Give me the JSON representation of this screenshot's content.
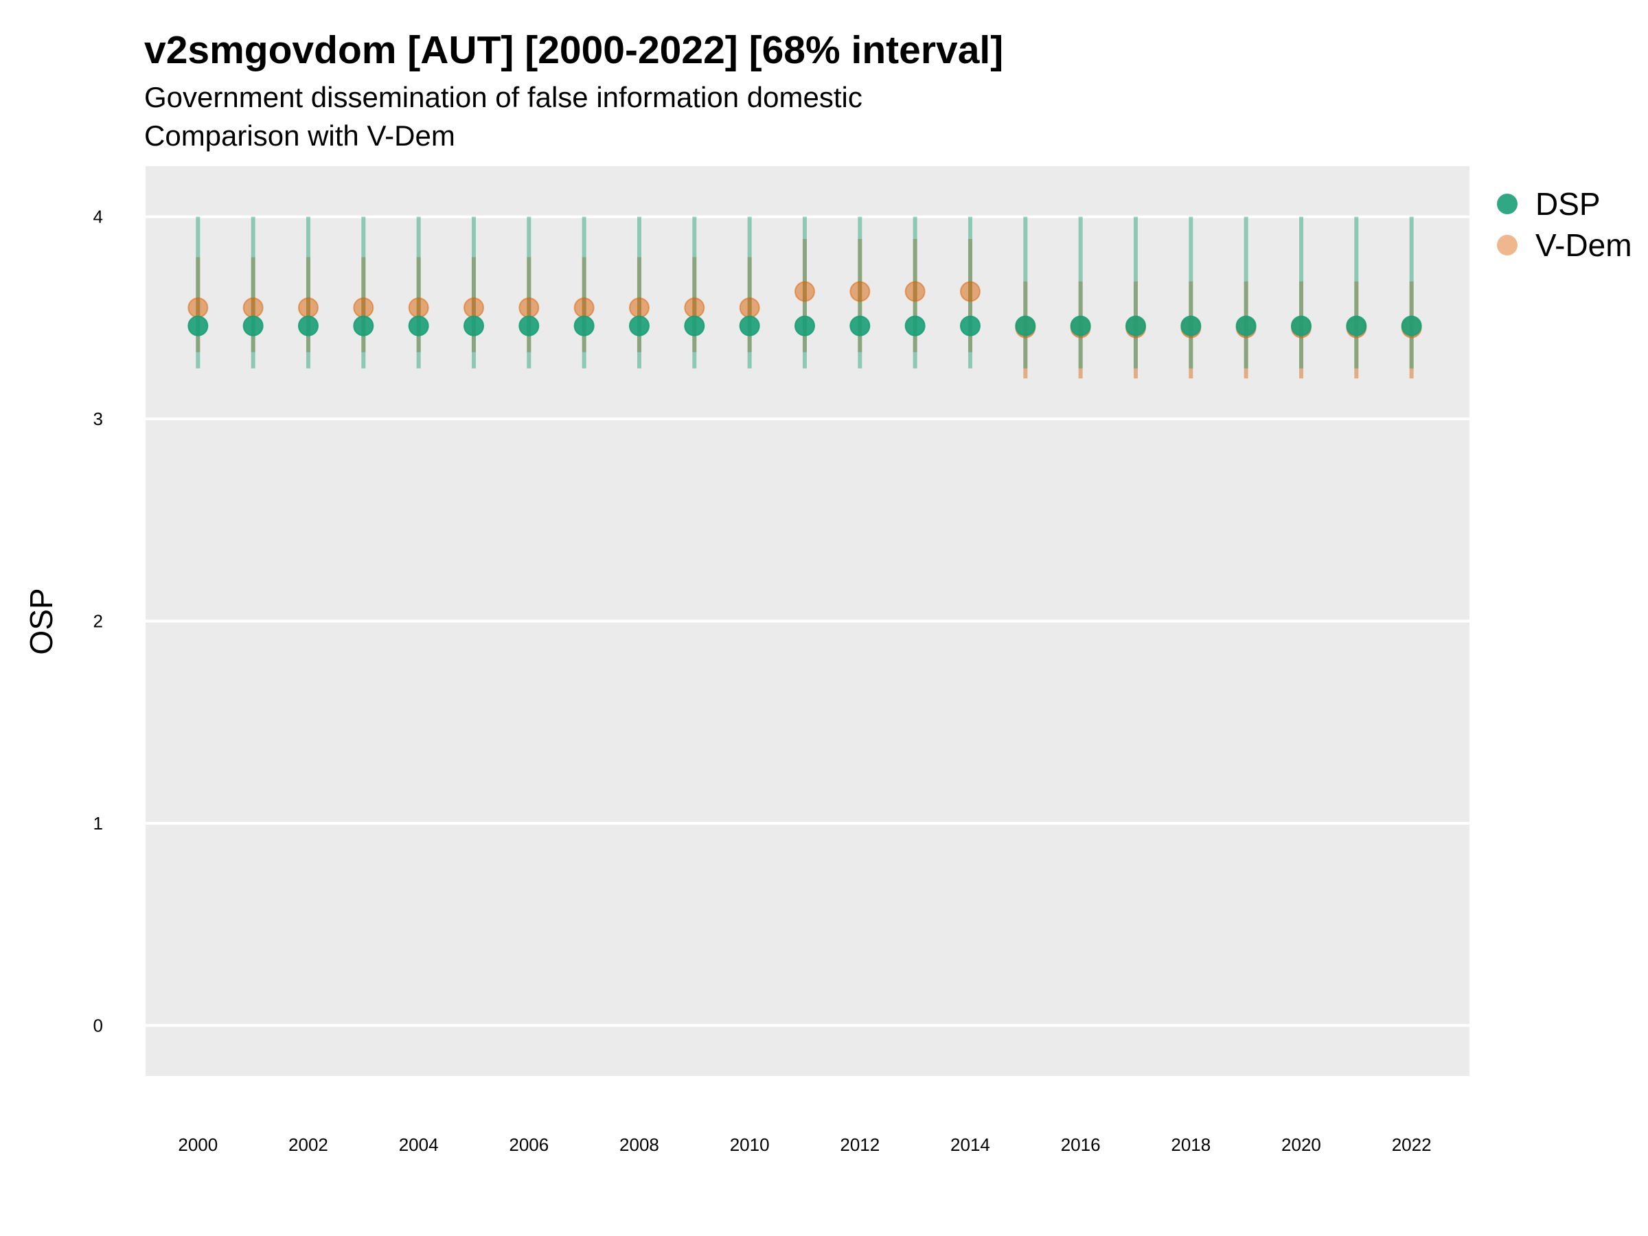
{
  "chart_data": {
    "type": "scatter",
    "title": "v2smgovdom [AUT] [2000-2022] [68% interval]",
    "subtitle_lines": [
      "Government dissemination of false information domestic",
      "Comparison with V-Dem"
    ],
    "xlabel": "",
    "ylabel": "OSP",
    "ylim": [
      -0.25,
      4.25
    ],
    "xlim": [
      1999.05,
      2023.05
    ],
    "yticks": [
      0,
      1,
      2,
      3,
      4
    ],
    "xticks": [
      2000,
      2002,
      2004,
      2006,
      2008,
      2010,
      2012,
      2014,
      2016,
      2018,
      2020,
      2022
    ],
    "grid": true,
    "legend_position": "right",
    "series": [
      {
        "name": "DSP",
        "color": "#1b9e77",
        "x": [
          2000,
          2001,
          2002,
          2003,
          2004,
          2005,
          2006,
          2007,
          2008,
          2009,
          2010,
          2011,
          2012,
          2013,
          2014,
          2015,
          2016,
          2017,
          2018,
          2019,
          2020,
          2021,
          2022
        ],
        "y": [
          3.46,
          3.46,
          3.46,
          3.46,
          3.46,
          3.46,
          3.46,
          3.46,
          3.46,
          3.46,
          3.46,
          3.46,
          3.46,
          3.46,
          3.46,
          3.46,
          3.46,
          3.46,
          3.46,
          3.46,
          3.46,
          3.46,
          3.46
        ],
        "lower": [
          3.25,
          3.25,
          3.25,
          3.25,
          3.25,
          3.25,
          3.25,
          3.25,
          3.25,
          3.25,
          3.25,
          3.25,
          3.25,
          3.25,
          3.25,
          3.25,
          3.25,
          3.25,
          3.25,
          3.25,
          3.25,
          3.25,
          3.25
        ],
        "upper": [
          4.0,
          4.0,
          4.0,
          4.0,
          4.0,
          4.0,
          4.0,
          4.0,
          4.0,
          4.0,
          4.0,
          4.0,
          4.0,
          4.0,
          4.0,
          4.0,
          4.0,
          4.0,
          4.0,
          4.0,
          4.0,
          4.0,
          4.0
        ]
      },
      {
        "name": "V-Dem",
        "color": "#d95f02",
        "x": [
          2000,
          2001,
          2002,
          2003,
          2004,
          2005,
          2006,
          2007,
          2008,
          2009,
          2010,
          2011,
          2012,
          2013,
          2014,
          2015,
          2016,
          2017,
          2018,
          2019,
          2020,
          2021,
          2022
        ],
        "y": [
          3.55,
          3.55,
          3.55,
          3.55,
          3.55,
          3.55,
          3.55,
          3.55,
          3.55,
          3.55,
          3.55,
          3.63,
          3.63,
          3.63,
          3.63,
          3.45,
          3.45,
          3.45,
          3.45,
          3.45,
          3.45,
          3.45,
          3.45
        ],
        "lower": [
          3.33,
          3.33,
          3.33,
          3.33,
          3.33,
          3.33,
          3.33,
          3.33,
          3.33,
          3.33,
          3.33,
          3.33,
          3.33,
          3.33,
          3.33,
          3.2,
          3.2,
          3.2,
          3.2,
          3.2,
          3.2,
          3.2,
          3.2
        ],
        "upper": [
          3.8,
          3.8,
          3.8,
          3.8,
          3.8,
          3.8,
          3.8,
          3.8,
          3.8,
          3.8,
          3.8,
          3.89,
          3.89,
          3.89,
          3.89,
          3.68,
          3.68,
          3.68,
          3.68,
          3.68,
          3.68,
          3.68,
          3.68
        ]
      }
    ]
  }
}
